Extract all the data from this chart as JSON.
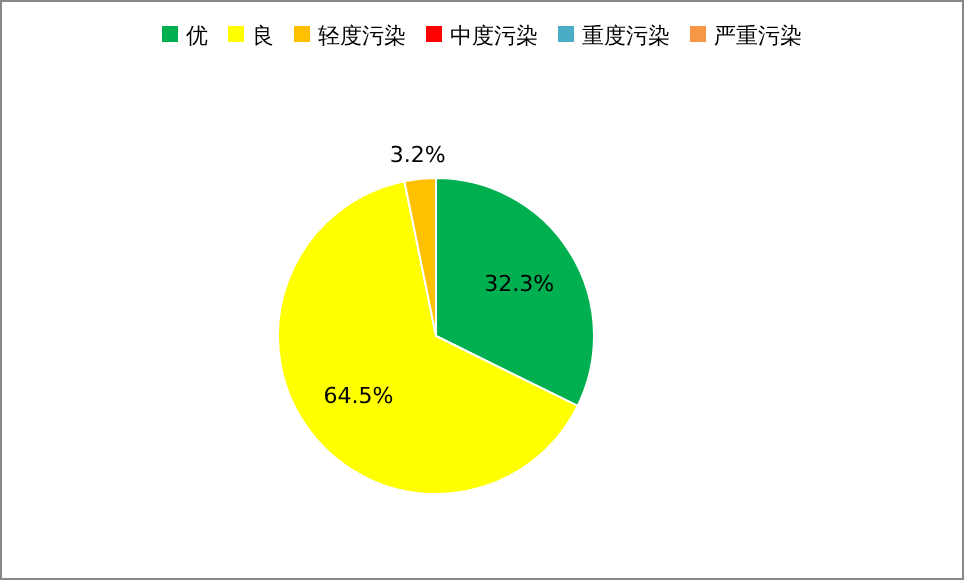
{
  "chart_data": {
    "type": "pie",
    "categories": [
      "优",
      "良",
      "轻度污染",
      "中度污染",
      "重度污染",
      "严重污染"
    ],
    "values": [
      32.3,
      64.5,
      3.2,
      0,
      0,
      0
    ],
    "colors": [
      "#00b050",
      "#ffff00",
      "#ffc000",
      "#ff0000",
      "#4bacc6",
      "#f79646"
    ],
    "value_labels": [
      "32.3%",
      "64.5%",
      "3.2%",
      null,
      null,
      null
    ],
    "legend": "top"
  }
}
